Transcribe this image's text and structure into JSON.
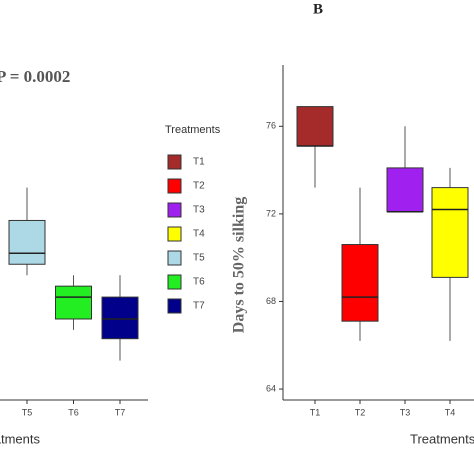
{
  "chart_data": [
    {
      "type": "box",
      "annotation": "P = 0.0002",
      "x_label": "Treatments",
      "categories": [
        "T5",
        "T6",
        "T7"
      ],
      "colors": [
        "#add8e6",
        "#22ee22",
        "#00008b"
      ],
      "boxes": [
        {
          "min": 69.2,
          "q1": 69.7,
          "median": 70.2,
          "q3": 71.7,
          "max": 73.2
        },
        {
          "min": 66.7,
          "q1": 67.2,
          "median": 68.2,
          "q3": 68.7,
          "max": 69.2
        },
        {
          "min": 65.3,
          "q1": 66.3,
          "median": 67.2,
          "q3": 68.2,
          "max": 69.2
        }
      ],
      "ylim": [
        63.5,
        78.8
      ],
      "legend": {
        "title": "Treatments",
        "entries": [
          {
            "name": "T1",
            "color": "#a52a2a"
          },
          {
            "name": "T2",
            "color": "#ff0000"
          },
          {
            "name": "T3",
            "color": "#a020f0"
          },
          {
            "name": "T4",
            "color": "#ffff00"
          },
          {
            "name": "T5",
            "color": "#add8e6"
          },
          {
            "name": "T6",
            "color": "#22ee22"
          },
          {
            "name": "T7",
            "color": "#00008b"
          }
        ]
      }
    },
    {
      "type": "box",
      "title": "B",
      "y_label": "Days to 50% silking",
      "x_label": "Treatments",
      "categories": [
        "T1",
        "T2",
        "T3",
        "T4"
      ],
      "colors": [
        "#a52a2a",
        "#ff0000",
        "#a020f0",
        "#ffff00"
      ],
      "boxes": [
        {
          "min": 73.2,
          "q1": 75.1,
          "median": 75.1,
          "q3": 76.9,
          "max": 76.9
        },
        {
          "min": 66.2,
          "q1": 67.1,
          "median": 68.2,
          "q3": 70.6,
          "max": 73.2
        },
        {
          "min": 72.1,
          "q1": 72.1,
          "median": 72.1,
          "q3": 74.1,
          "max": 76.0
        },
        {
          "min": 66.2,
          "q1": 69.1,
          "median": 72.2,
          "q3": 73.2,
          "max": 74.1
        }
      ],
      "ylim": [
        63.5,
        78.8
      ],
      "yticks": [
        64,
        68,
        72,
        76
      ]
    }
  ]
}
